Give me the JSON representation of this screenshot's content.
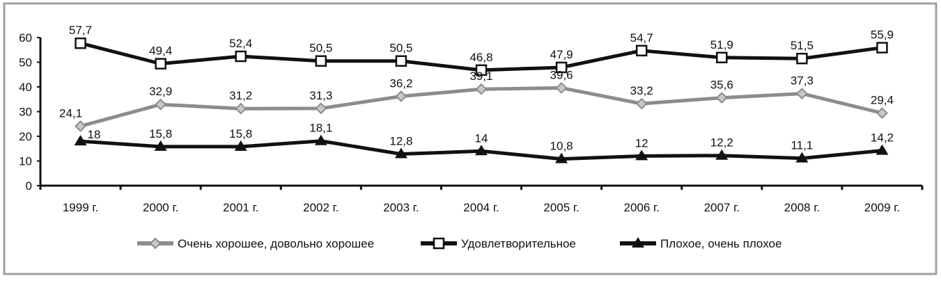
{
  "chart_data": {
    "type": "line",
    "categories": [
      "1999 г.",
      "2000 г.",
      "2001 г.",
      "2002 г.",
      "2003 г.",
      "2004 г.",
      "2005 г.",
      "2006 г.",
      "2007 г.",
      "2008 г.",
      "2009 г."
    ],
    "ylim": [
      0,
      60
    ],
    "yticks": [
      "0",
      "10",
      "20",
      "30",
      "40",
      "50",
      "60"
    ],
    "grid": false,
    "legend_position": "bottom",
    "series": [
      {
        "name": "Очень хорошее, довольно хорошее",
        "marker": "diamond",
        "color": "#8c8c8c",
        "values": [
          24.1,
          32.9,
          31.2,
          31.3,
          36.2,
          39.1,
          39.6,
          33.2,
          35.6,
          37.3,
          29.4
        ],
        "labels": [
          "24,1",
          "32,9",
          "31,2",
          "31,3",
          "36,2",
          "39,1",
          "39,6",
          "33,2",
          "35,6",
          "37,3",
          "29,4"
        ]
      },
      {
        "name": "Удовлетворительное",
        "marker": "square",
        "color": "#111111",
        "values": [
          57.7,
          49.4,
          52.4,
          50.5,
          50.5,
          46.8,
          47.9,
          54.7,
          51.9,
          51.5,
          55.9
        ],
        "labels": [
          "57,7",
          "49,4",
          "52,4",
          "50,5",
          "50,5",
          "46,8",
          "47,9",
          "54,7",
          "51,9",
          "51,5",
          "55,9"
        ]
      },
      {
        "name": "Плохое, очень  плохое",
        "marker": "triangle",
        "color": "#111111",
        "values": [
          18,
          15.8,
          15.8,
          18.1,
          12.8,
          14,
          10.8,
          12,
          12.2,
          11.1,
          14.2
        ],
        "labels": [
          "18",
          "15,8",
          "15,8",
          "18,1",
          "12,8",
          "14",
          "10,8",
          "12",
          "12,2",
          "11,1",
          "14,2"
        ]
      }
    ]
  }
}
